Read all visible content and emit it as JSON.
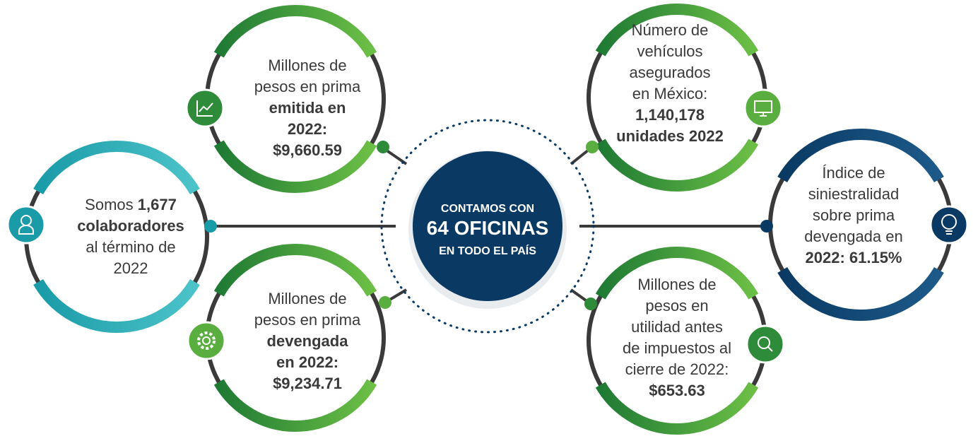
{
  "center": {
    "lines": [
      "CONTAMOS CON",
      "64 OFICINAS",
      "EN TODO EL PAÍS"
    ]
  },
  "nodes": [
    {
      "lines": [
        [
          {
            "text": "Somos "
          },
          {
            "text": "1,677",
            "bold": true
          }
        ],
        [
          {
            "text": "colaboradores",
            "bold": true
          }
        ],
        [
          {
            "text": "al término de"
          }
        ],
        [
          {
            "text": "2022"
          }
        ]
      ]
    },
    {
      "lines": [
        [
          {
            "text": "Millones de"
          }
        ],
        [
          {
            "text": "pesos en prima"
          }
        ],
        [
          {
            "text": "emitida en",
            "bold": true
          }
        ],
        [
          {
            "text": "2022:",
            "bold": true
          }
        ],
        [
          {
            "text": "$9,660.59",
            "bold": true
          }
        ]
      ]
    },
    {
      "lines": [
        [
          {
            "text": "Millones de"
          }
        ],
        [
          {
            "text": "pesos en prima"
          }
        ],
        [
          {
            "text": "devengada",
            "bold": true
          }
        ],
        [
          {
            "text": "en 2022:",
            "bold": true
          }
        ],
        [
          {
            "text": "$9,234.71",
            "bold": true
          }
        ]
      ]
    },
    {
      "lines": [
        [
          {
            "text": "Número de"
          }
        ],
        [
          {
            "text": "vehículos"
          }
        ],
        [
          {
            "text": "asegurados"
          }
        ],
        [
          {
            "text": "en México:"
          }
        ],
        [
          {
            "text": "1,140,178",
            "bold": true
          }
        ],
        [
          {
            "text": "unidades 2022",
            "bold": true
          }
        ]
      ]
    },
    {
      "lines": [
        [
          {
            "text": "Millones de"
          }
        ],
        [
          {
            "text": "pesos en"
          }
        ],
        [
          {
            "text": "utilidad antes"
          }
        ],
        [
          {
            "text": "de impuestos al"
          }
        ],
        [
          {
            "text": "cierre de 2022:"
          }
        ],
        [
          {
            "text": "$653.63",
            "bold": true
          }
        ]
      ]
    },
    {
      "lines": [
        [
          {
            "text": "Índice de"
          }
        ],
        [
          {
            "text": "siniestralidad"
          }
        ],
        [
          {
            "text": "sobre prima"
          }
        ],
        [
          {
            "text": "devengada en"
          }
        ],
        [
          {
            "text": "2022: 61.15%",
            "bold": true
          }
        ]
      ]
    }
  ]
}
